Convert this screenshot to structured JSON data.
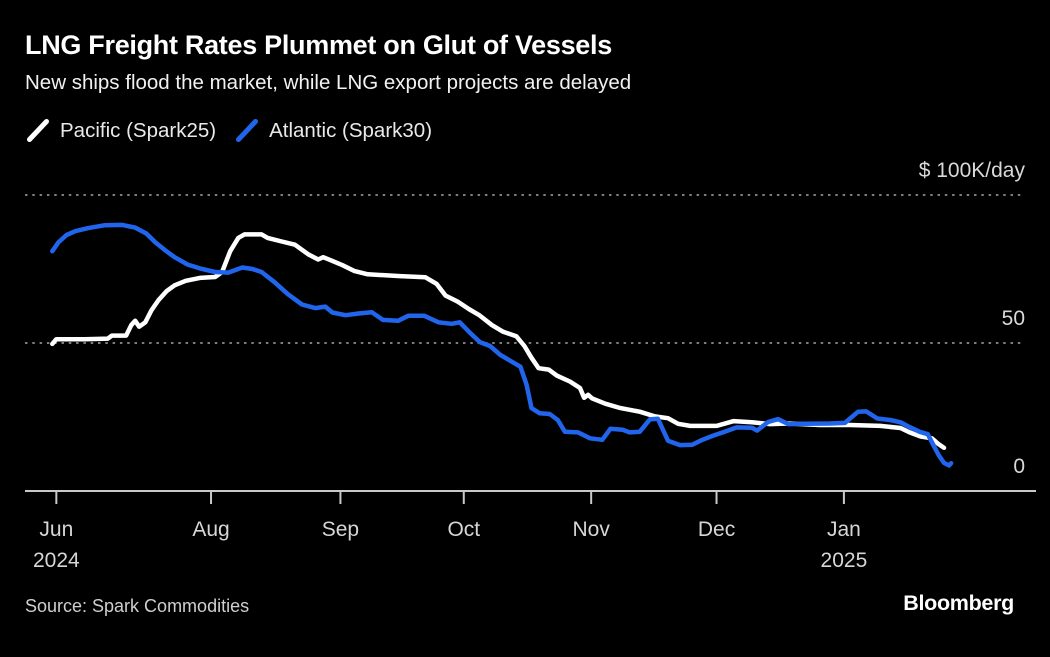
{
  "header": {
    "title": "LNG Freight Rates Plummet on Glut of Vessels",
    "subtitle": "New ships flood the market, while LNG export projects are delayed"
  },
  "legend": [
    {
      "label": "Pacific (Spark25)",
      "color": "#ffffff",
      "icon": "diagonal-line-swatch"
    },
    {
      "label": "Atlantic (Spark30)",
      "color": "#2065ec",
      "icon": "diagonal-line-swatch"
    }
  ],
  "footer": {
    "source": "Source: Spark Commodities",
    "logo": "Bloomberg"
  },
  "chart_data": {
    "type": "line",
    "unit": "$K/day",
    "ylim": [
      0,
      113
    ],
    "grid": "horizontal-dotted",
    "legend_position": "top-left",
    "y_ticks": [
      {
        "value": 100,
        "label": "$ 100K/day",
        "style": "dotted"
      },
      {
        "value": 50,
        "label": "50",
        "style": "dotted"
      },
      {
        "value": 0,
        "label": "0",
        "style": "solid"
      }
    ],
    "x_ticks": [
      {
        "label": "Jun",
        "sublabel": "2024",
        "f": 0.031
      },
      {
        "label": "Aug",
        "f": 0.184
      },
      {
        "label": "Sep",
        "f": 0.312
      },
      {
        "label": "Oct",
        "f": 0.434
      },
      {
        "label": "Nov",
        "f": 0.56
      },
      {
        "label": "Dec",
        "f": 0.684
      },
      {
        "label": "Jan",
        "sublabel": "2025",
        "f": 0.81
      }
    ],
    "series": [
      {
        "name": "Pacific (Spark25)",
        "color": "#ffffff",
        "points": [
          [
            0.027,
            49.7
          ],
          [
            0.031,
            51.3
          ],
          [
            0.059,
            51.3
          ],
          [
            0.082,
            51.5
          ],
          [
            0.086,
            52.5
          ],
          [
            0.1,
            52.5
          ],
          [
            0.105,
            56.0
          ],
          [
            0.109,
            57.5
          ],
          [
            0.113,
            55.5
          ],
          [
            0.119,
            57.0
          ],
          [
            0.125,
            61.0
          ],
          [
            0.132,
            64.5
          ],
          [
            0.14,
            67.5
          ],
          [
            0.148,
            69.5
          ],
          [
            0.159,
            71.0
          ],
          [
            0.173,
            72.0
          ],
          [
            0.188,
            72.3
          ],
          [
            0.195,
            74.0
          ],
          [
            0.203,
            81.0
          ],
          [
            0.211,
            85.5
          ],
          [
            0.217,
            86.7
          ],
          [
            0.234,
            86.7
          ],
          [
            0.24,
            85.5
          ],
          [
            0.254,
            84.3
          ],
          [
            0.267,
            83.2
          ],
          [
            0.28,
            80.0
          ],
          [
            0.29,
            78.2
          ],
          [
            0.295,
            79.0
          ],
          [
            0.302,
            78.0
          ],
          [
            0.314,
            76.3
          ],
          [
            0.326,
            74.3
          ],
          [
            0.339,
            73.2
          ],
          [
            0.371,
            72.6
          ],
          [
            0.396,
            72.2
          ],
          [
            0.407,
            70.0
          ],
          [
            0.416,
            66.0
          ],
          [
            0.428,
            64.0
          ],
          [
            0.439,
            61.5
          ],
          [
            0.449,
            59.5
          ],
          [
            0.462,
            56.0
          ],
          [
            0.473,
            53.8
          ],
          [
            0.486,
            52.3
          ],
          [
            0.494,
            49.0
          ],
          [
            0.501,
            45.0
          ],
          [
            0.508,
            41.5
          ],
          [
            0.518,
            41.0
          ],
          [
            0.526,
            39.0
          ],
          [
            0.539,
            37.0
          ],
          [
            0.549,
            34.8
          ],
          [
            0.553,
            31.5
          ],
          [
            0.557,
            32.5
          ],
          [
            0.561,
            31.3
          ],
          [
            0.574,
            29.5
          ],
          [
            0.589,
            28.0
          ],
          [
            0.608,
            26.8
          ],
          [
            0.623,
            25.2
          ],
          [
            0.636,
            24.6
          ],
          [
            0.646,
            22.7
          ],
          [
            0.658,
            22.0
          ],
          [
            0.684,
            22.0
          ],
          [
            0.701,
            23.6
          ],
          [
            0.719,
            23.2
          ],
          [
            0.737,
            22.6
          ],
          [
            0.755,
            22.8
          ],
          [
            0.786,
            22.3
          ],
          [
            0.816,
            22.3
          ],
          [
            0.846,
            22.0
          ],
          [
            0.866,
            21.3
          ],
          [
            0.875,
            19.8
          ],
          [
            0.886,
            18.4
          ],
          [
            0.897,
            17.8
          ],
          [
            0.903,
            16.0
          ],
          [
            0.909,
            14.6
          ]
        ]
      },
      {
        "name": "Atlantic (Spark30)",
        "color": "#2065ec",
        "points": [
          [
            0.027,
            81.0
          ],
          [
            0.033,
            84.0
          ],
          [
            0.041,
            86.5
          ],
          [
            0.05,
            87.8
          ],
          [
            0.062,
            88.8
          ],
          [
            0.079,
            89.8
          ],
          [
            0.096,
            89.9
          ],
          [
            0.109,
            89.0
          ],
          [
            0.12,
            87.0
          ],
          [
            0.129,
            84.0
          ],
          [
            0.138,
            81.5
          ],
          [
            0.148,
            79.0
          ],
          [
            0.161,
            76.5
          ],
          [
            0.173,
            75.2
          ],
          [
            0.188,
            74.0
          ],
          [
            0.201,
            73.8
          ],
          [
            0.215,
            75.5
          ],
          [
            0.225,
            75.0
          ],
          [
            0.234,
            74.0
          ],
          [
            0.247,
            70.5
          ],
          [
            0.26,
            66.5
          ],
          [
            0.274,
            63.0
          ],
          [
            0.287,
            61.8
          ],
          [
            0.297,
            62.3
          ],
          [
            0.304,
            60.3
          ],
          [
            0.317,
            59.4
          ],
          [
            0.331,
            60.0
          ],
          [
            0.343,
            60.4
          ],
          [
            0.354,
            57.8
          ],
          [
            0.369,
            57.5
          ],
          [
            0.379,
            59.2
          ],
          [
            0.395,
            59.2
          ],
          [
            0.409,
            57.0
          ],
          [
            0.422,
            56.5
          ],
          [
            0.43,
            57.0
          ],
          [
            0.44,
            53.5
          ],
          [
            0.45,
            50.3
          ],
          [
            0.46,
            49.0
          ],
          [
            0.47,
            46.0
          ],
          [
            0.48,
            44.0
          ],
          [
            0.49,
            42.0
          ],
          [
            0.496,
            36.0
          ],
          [
            0.501,
            28.0
          ],
          [
            0.509,
            26.3
          ],
          [
            0.519,
            26.0
          ],
          [
            0.527,
            24.0
          ],
          [
            0.534,
            20.0
          ],
          [
            0.547,
            19.8
          ],
          [
            0.559,
            17.8
          ],
          [
            0.571,
            17.3
          ],
          [
            0.579,
            21.0
          ],
          [
            0.591,
            20.7
          ],
          [
            0.598,
            19.8
          ],
          [
            0.608,
            20.0
          ],
          [
            0.618,
            24.2
          ],
          [
            0.626,
            24.4
          ],
          [
            0.636,
            17.0
          ],
          [
            0.648,
            15.5
          ],
          [
            0.66,
            15.6
          ],
          [
            0.668,
            17.0
          ],
          [
            0.68,
            18.6
          ],
          [
            0.691,
            19.9
          ],
          [
            0.704,
            21.5
          ],
          [
            0.719,
            21.4
          ],
          [
            0.724,
            20.4
          ],
          [
            0.735,
            23.3
          ],
          [
            0.745,
            24.3
          ],
          [
            0.755,
            22.6
          ],
          [
            0.772,
            22.7
          ],
          [
            0.796,
            22.8
          ],
          [
            0.811,
            23.0
          ],
          [
            0.824,
            26.8
          ],
          [
            0.832,
            26.9
          ],
          [
            0.843,
            24.5
          ],
          [
            0.856,
            24.0
          ],
          [
            0.866,
            23.2
          ],
          [
            0.875,
            21.6
          ],
          [
            0.885,
            20.0
          ],
          [
            0.893,
            19.2
          ],
          [
            0.898,
            15.8
          ],
          [
            0.904,
            12.0
          ],
          [
            0.909,
            9.5
          ],
          [
            0.914,
            8.6
          ],
          [
            0.916,
            9.4
          ]
        ]
      }
    ]
  }
}
